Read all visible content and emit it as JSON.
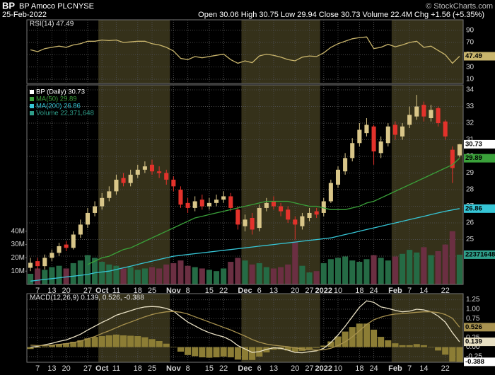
{
  "header": {
    "symbol": "BP",
    "name": "BP Amoco PLC",
    "exchange": "NYSE",
    "date": "25-Feb-2022",
    "quote": "Open 30.06  High 30.75  Low 29.94  Close 30.73  Volume 22.4M  Chg +1.56 (+5.35%)",
    "source": "© StockCharts.com"
  },
  "chart_data": [
    {
      "type": "line",
      "title": "RSI(14) 47.49",
      "ylim": [
        3,
        107
      ],
      "yticks": [
        90,
        70,
        50,
        30,
        10
      ],
      "grid": true,
      "series": [
        {
          "type": "line",
          "color": "#c9b56c",
          "values": [
            58,
            55,
            60,
            62,
            64,
            62,
            66,
            68,
            72,
            72,
            74,
            73,
            74,
            70,
            71,
            72,
            72,
            68,
            66,
            62,
            56,
            44,
            42,
            47,
            45,
            47,
            49,
            51,
            42,
            36,
            40,
            37,
            48,
            51,
            49,
            46,
            42,
            40,
            46,
            48,
            47,
            53,
            62,
            68,
            72,
            76,
            78,
            79,
            60,
            62,
            67,
            63,
            66,
            70,
            72,
            62,
            64,
            57,
            50,
            36,
            47.49
          ]
        }
      ]
    },
    {
      "type": "candlestick",
      "ylim": [
        22.3,
        34.3
      ],
      "yticks": [
        24,
        25,
        26,
        27,
        28,
        29,
        30,
        31,
        32,
        33,
        34
      ],
      "grid": true,
      "y2lim": [
        0,
        150000000
      ],
      "y2ticks": [
        {
          "value": 10000000,
          "label": "10M"
        },
        {
          "value": 20000000,
          "label": "20M"
        },
        {
          "value": 30000000,
          "label": "30M"
        },
        {
          "value": 40000000,
          "label": "40M"
        }
      ],
      "categories": [
        null,
        "7",
        null,
        "13",
        null,
        "20",
        null,
        null,
        "27",
        null,
        "Oct",
        null,
        "11",
        null,
        null,
        "18",
        null,
        "25",
        null,
        null,
        "Nov",
        null,
        "8",
        null,
        null,
        "15",
        null,
        "22",
        null,
        null,
        "Dec",
        null,
        "6",
        null,
        "13",
        null,
        null,
        "20",
        null,
        "27",
        null,
        "2022",
        null,
        "10",
        null,
        null,
        "18",
        null,
        "24",
        null,
        null,
        "Feb",
        null,
        "7",
        null,
        "14",
        null,
        null,
        "22",
        null,
        null
      ],
      "series": [
        {
          "name": "BP (Daily) 30.73",
          "type": "candlestick",
          "color": "#ffffff",
          "up_color": "#d9c689",
          "down_color": "#e3322b",
          "open": [
            23.3,
            23.7,
            23.4,
            23.9,
            24.2,
            24.7,
            24.5,
            25.3,
            25.9,
            26.6,
            27.0,
            27.5,
            27.9,
            28.7,
            28.4,
            28.9,
            29.2,
            29.5,
            29.1,
            29.0,
            28.6,
            28.0,
            27.2,
            26.9,
            27.4,
            27.0,
            27.2,
            27.4,
            27.6,
            26.8,
            25.8,
            26.3,
            25.7,
            26.9,
            27.3,
            27.0,
            26.8,
            26.2,
            25.8,
            26.3,
            26.7,
            26.6,
            27.3,
            28.3,
            29.1,
            29.9,
            30.8,
            31.4,
            31.8,
            30.2,
            30.8,
            31.9,
            31.2,
            31.9,
            32.4,
            33.1,
            32.3,
            32.9,
            32.1,
            30.4,
            30.06
          ],
          "high": [
            23.9,
            23.9,
            24.1,
            24.4,
            24.8,
            24.9,
            25.5,
            26.2,
            26.9,
            27.3,
            27.8,
            28.2,
            28.9,
            29.0,
            29.2,
            29.5,
            29.7,
            29.8,
            29.4,
            29.2,
            28.8,
            28.2,
            27.5,
            27.6,
            27.7,
            27.5,
            27.7,
            27.9,
            27.8,
            27.0,
            26.5,
            26.6,
            27.1,
            27.5,
            27.6,
            27.2,
            27.0,
            26.4,
            26.6,
            26.9,
            26.9,
            27.5,
            28.6,
            29.4,
            30.2,
            31.1,
            32.0,
            32.3,
            31.9,
            31.2,
            32.0,
            32.1,
            32.0,
            33.0,
            33.7,
            33.3,
            33.1,
            33.0,
            32.2,
            30.6,
            30.75
          ],
          "low": [
            23.1,
            23.2,
            23.2,
            23.7,
            24.0,
            24.3,
            24.4,
            25.1,
            25.7,
            26.4,
            26.8,
            27.3,
            27.7,
            28.2,
            28.2,
            28.7,
            29.0,
            28.9,
            28.7,
            28.3,
            27.9,
            26.9,
            26.6,
            26.7,
            26.8,
            26.8,
            27.0,
            27.2,
            26.7,
            25.6,
            25.5,
            25.3,
            25.5,
            26.7,
            26.8,
            26.4,
            26.0,
            25.0,
            25.6,
            26.1,
            26.3,
            26.4,
            27.2,
            28.1,
            28.9,
            29.7,
            30.6,
            31.2,
            29.5,
            29.9,
            30.6,
            31.0,
            31.0,
            31.7,
            32.2,
            32.1,
            32.1,
            31.8,
            31.0,
            28.4,
            29.94
          ],
          "close": [
            23.6,
            23.4,
            23.9,
            24.2,
            24.6,
            24.5,
            25.3,
            25.9,
            26.6,
            27.0,
            27.5,
            27.9,
            28.6,
            28.4,
            28.9,
            29.2,
            29.4,
            29.1,
            29.0,
            28.6,
            28.2,
            27.1,
            26.9,
            27.3,
            27.0,
            27.2,
            27.4,
            27.6,
            26.9,
            25.9,
            26.2,
            25.6,
            26.9,
            27.2,
            27.0,
            26.7,
            26.2,
            25.9,
            26.4,
            26.6,
            26.5,
            27.3,
            28.4,
            29.2,
            29.9,
            30.8,
            31.6,
            31.9,
            30.3,
            30.9,
            31.8,
            31.3,
            31.8,
            32.5,
            33.0,
            32.4,
            32.8,
            32.0,
            31.2,
            29.3,
            30.73
          ]
        },
        {
          "name": "MA(50) 29.89",
          "type": "line",
          "color": "#3aa13a",
          "values": [
            null,
            null,
            null,
            null,
            null,
            null,
            null,
            null,
            23.5,
            23.7,
            23.9,
            24.0,
            24.2,
            24.4,
            24.5,
            24.7,
            24.9,
            25.1,
            25.3,
            25.5,
            25.7,
            25.9,
            26.1,
            26.3,
            26.4,
            26.5,
            26.6,
            26.7,
            26.8,
            26.9,
            27.0,
            27.1,
            27.2,
            27.3,
            27.3,
            27.3,
            27.3,
            27.2,
            27.1,
            27.0,
            27.0,
            26.9,
            26.8,
            26.8,
            26.8,
            26.9,
            27.0,
            27.2,
            27.3,
            27.5,
            27.7,
            27.9,
            28.1,
            28.3,
            28.5,
            28.7,
            28.9,
            29.1,
            29.3,
            29.5,
            29.89
          ]
        },
        {
          "name": "MA(200) 26.86",
          "type": "line",
          "color": "#36c6d6",
          "values": [
            22.5,
            22.55,
            22.6,
            22.65,
            22.7,
            22.75,
            22.8,
            22.85,
            22.9,
            23.0,
            23.05,
            23.1,
            23.2,
            23.3,
            23.4,
            23.5,
            23.6,
            23.7,
            23.8,
            23.9,
            24.0,
            24.05,
            24.1,
            24.15,
            24.2,
            24.25,
            24.3,
            24.35,
            24.4,
            24.45,
            24.5,
            24.55,
            24.6,
            24.65,
            24.7,
            24.75,
            24.8,
            24.85,
            24.9,
            24.95,
            25.0,
            25.05,
            25.1,
            25.2,
            25.3,
            25.4,
            25.5,
            25.6,
            25.7,
            25.8,
            25.9,
            26.0,
            26.1,
            26.2,
            26.3,
            26.4,
            26.5,
            26.6,
            26.7,
            26.78,
            26.86
          ]
        },
        {
          "name": "Volume 22,371,648",
          "type": "bar",
          "axis": "y2",
          "color": "#2f9f8a",
          "up_color": "#256b45",
          "down_color": "#6b2f42",
          "values": [
            8000000,
            12000000,
            11000000,
            13000000,
            14000000,
            12000000,
            16000000,
            18000000,
            22000000,
            20000000,
            17000000,
            15000000,
            14000000,
            12000000,
            13000000,
            11000000,
            12000000,
            13000000,
            12000000,
            15000000,
            16000000,
            18000000,
            14000000,
            13000000,
            12000000,
            11000000,
            10000000,
            12000000,
            17000000,
            20000000,
            18000000,
            15000000,
            16000000,
            13000000,
            12000000,
            13000000,
            15000000,
            32000000,
            14000000,
            9000000,
            10000000,
            16000000,
            19000000,
            20000000,
            21000000,
            18000000,
            17000000,
            19000000,
            22000000,
            20000000,
            18000000,
            21000000,
            23000000,
            26000000,
            24000000,
            28000000,
            22000000,
            25000000,
            30000000,
            40000000,
            22371648
          ]
        }
      ]
    },
    {
      "type": "line",
      "title": "MACD(12,26,9) 0.139, 0.526, -0.388",
      "ylim": [
        -0.4,
        1.41
      ],
      "yticks": [
        1.25,
        {
          "value": 1,
          "label": "1.00"
        },
        0.75,
        {
          "value": 0.5,
          "label": "0.50"
        },
        0.25,
        {
          "value": 0,
          "label": "0.00"
        },
        -0.25
      ],
      "grid": true,
      "series": [
        {
          "type": "histogram",
          "color": "#8c7d35",
          "values": [
            -0.05,
            -0.02,
            0.02,
            0.05,
            0.08,
            0.1,
            0.14,
            0.18,
            0.23,
            0.27,
            0.29,
            0.31,
            0.33,
            0.31,
            0.3,
            0.29,
            0.26,
            0.21,
            0.16,
            0.09,
            0.01,
            -0.12,
            -0.21,
            -0.24,
            -0.27,
            -0.28,
            -0.27,
            -0.25,
            -0.27,
            -0.33,
            -0.34,
            -0.34,
            -0.25,
            -0.14,
            -0.07,
            -0.06,
            -0.09,
            -0.12,
            -0.1,
            -0.05,
            -0.02,
            0.04,
            0.15,
            0.28,
            0.41,
            0.53,
            0.62,
            0.62,
            0.46,
            0.27,
            0.18,
            0.1,
            0.05,
            0.05,
            0.08,
            0.05,
            0.0,
            -0.09,
            -0.2,
            -0.38,
            -0.388
          ]
        },
        {
          "type": "line",
          "color": "#e8e0c4",
          "values": [
            0.0,
            0.02,
            0.06,
            0.1,
            0.15,
            0.19,
            0.26,
            0.34,
            0.45,
            0.55,
            0.65,
            0.74,
            0.84,
            0.9,
            0.96,
            1.02,
            1.06,
            1.07,
            1.06,
            1.02,
            0.95,
            0.8,
            0.66,
            0.56,
            0.46,
            0.38,
            0.32,
            0.27,
            0.18,
            0.04,
            -0.05,
            -0.14,
            -0.12,
            -0.06,
            -0.02,
            -0.03,
            -0.08,
            -0.14,
            -0.15,
            -0.12,
            -0.1,
            -0.03,
            0.12,
            0.32,
            0.55,
            0.8,
            1.05,
            1.22,
            1.18,
            1.06,
            1.02,
            0.97,
            0.93,
            0.95,
            1.0,
            0.98,
            0.93,
            0.82,
            0.66,
            0.38,
            0.139
          ]
        },
        {
          "type": "line",
          "color": "#a8924f",
          "values": [
            0.05,
            0.04,
            0.04,
            0.05,
            0.07,
            0.09,
            0.12,
            0.16,
            0.22,
            0.28,
            0.36,
            0.43,
            0.51,
            0.59,
            0.66,
            0.73,
            0.8,
            0.86,
            0.9,
            0.93,
            0.94,
            0.92,
            0.87,
            0.8,
            0.73,
            0.66,
            0.59,
            0.52,
            0.45,
            0.37,
            0.29,
            0.2,
            0.13,
            0.08,
            0.05,
            0.03,
            0.01,
            -0.02,
            -0.05,
            -0.07,
            -0.08,
            -0.07,
            -0.03,
            0.04,
            0.14,
            0.27,
            0.43,
            0.6,
            0.72,
            0.79,
            0.84,
            0.87,
            0.88,
            0.9,
            0.92,
            0.93,
            0.93,
            0.91,
            0.86,
            0.76,
            0.526
          ]
        }
      ]
    }
  ]
}
